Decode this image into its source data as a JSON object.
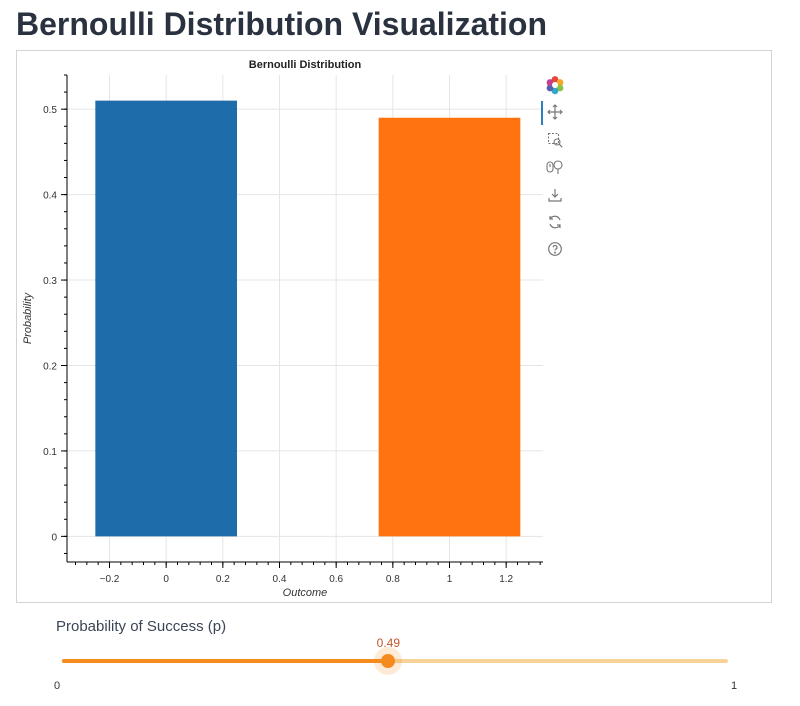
{
  "page": {
    "title": "Bernoulli Distribution Visualization"
  },
  "toolbar": {
    "tools": [
      {
        "name": "bokeh-logo-icon",
        "active": false
      },
      {
        "name": "pan-icon",
        "active": true
      },
      {
        "name": "box-zoom-icon",
        "active": false
      },
      {
        "name": "wheel-zoom-icon",
        "active": false
      },
      {
        "name": "save-icon",
        "active": false
      },
      {
        "name": "reset-icon",
        "active": false
      },
      {
        "name": "help-icon",
        "active": false
      }
    ]
  },
  "chart_data": {
    "type": "bar",
    "title": "Bernoulli Distribution",
    "xlabel": "Outcome",
    "ylabel": "Probability",
    "xlim": [
      -0.35,
      1.33
    ],
    "ylim": [
      -0.03,
      0.54
    ],
    "xticks": [
      -0.2,
      0,
      0.2,
      0.4,
      0.6,
      0.8,
      1,
      1.2
    ],
    "xtick_labels": [
      "−0.2",
      "0",
      "0.2",
      "0.4",
      "0.6",
      "0.8",
      "1",
      "1.2"
    ],
    "yticks": [
      0,
      0.1,
      0.2,
      0.3,
      0.4,
      0.5
    ],
    "ytick_labels": [
      "0",
      "0.1",
      "0.2",
      "0.3",
      "0.4",
      "0.5"
    ],
    "grid": true,
    "bars": [
      {
        "x": 0,
        "width": 0.5,
        "value": 0.51,
        "color": "#1f6cab"
      },
      {
        "x": 1,
        "width": 0.5,
        "value": 0.49,
        "color": "#ff7410"
      }
    ]
  },
  "slider": {
    "label": "Probability of Success (p)",
    "value": 0.49,
    "value_label": "0.49",
    "min": 0,
    "max": 1,
    "min_label": "0",
    "max_label": "1",
    "color": "#f58b1f"
  }
}
